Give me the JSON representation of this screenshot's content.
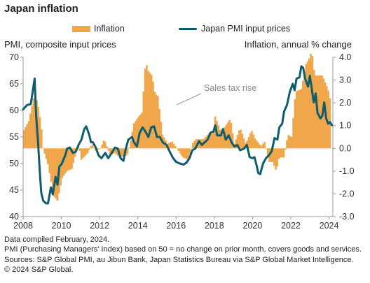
{
  "title": "Japan inflation",
  "legend": {
    "inflation_label": "Inflation",
    "pmi_label": "Japan PMI input prices"
  },
  "left_axis_title": "PMI, composite input prices",
  "right_axis_title": "Inflation, annual % change",
  "annotation": "Sales tax rise",
  "footer": {
    "line1": "Data compiled February, 2024.",
    "line2": "PMI (Purchasing Managers' Index) based on 50 = no change on prior month, covers goods and services.",
    "line3": "Sources: S&P Global PMI, au Jibun Bank, Japan Statistics Bureau via S&P Global Market Intelligence.",
    "line4": "© 2024 S&P Global."
  },
  "colors": {
    "inflation": "#f0a64a",
    "pmi": "#0d5d6e",
    "axis": "#9a9a9a"
  },
  "chart_data": {
    "type": "bar+line",
    "x_ticks": [
      "2008",
      "2010",
      "2012",
      "2014",
      "2016",
      "2018",
      "2020",
      "2022",
      "2024"
    ],
    "left_axis": {
      "label": "PMI, composite input prices",
      "min": 40,
      "max": 70,
      "ticks": [
        40,
        45,
        50,
        55,
        60,
        65,
        70
      ]
    },
    "right_axis": {
      "label": "Inflation, annual % change",
      "min": -3.0,
      "max": 4.0,
      "ticks": [
        "-3.0",
        "-2.0",
        "-1.0",
        "0.0",
        "1.0",
        "2.0",
        "3.0",
        "4.0"
      ]
    },
    "series": [
      {
        "name": "Inflation",
        "kind": "bar",
        "axis": "right",
        "points": [
          [
            2008.0,
            0.8
          ],
          [
            2008.25,
            1.2
          ],
          [
            2008.5,
            2.2
          ],
          [
            2008.7,
            2.1
          ],
          [
            2008.9,
            1.0
          ],
          [
            2009.0,
            0.0
          ],
          [
            2009.25,
            -0.7
          ],
          [
            2009.55,
            -2.1
          ],
          [
            2009.75,
            -2.3
          ],
          [
            2010.0,
            -1.3
          ],
          [
            2010.25,
            -1.0
          ],
          [
            2010.5,
            -0.9
          ],
          [
            2010.85,
            0.2
          ],
          [
            2011.0,
            -0.5
          ],
          [
            2011.35,
            -0.2
          ],
          [
            2011.55,
            0.2
          ],
          [
            2011.75,
            -0.1
          ],
          [
            2012.0,
            0.0
          ],
          [
            2012.2,
            0.4
          ],
          [
            2012.5,
            -0.3
          ],
          [
            2012.75,
            -0.2
          ],
          [
            2013.0,
            -0.4
          ],
          [
            2013.4,
            -0.3
          ],
          [
            2013.55,
            0.2
          ],
          [
            2013.75,
            1.1
          ],
          [
            2014.0,
            1.4
          ],
          [
            2014.1,
            1.5
          ],
          [
            2014.2,
            1.6
          ],
          [
            2014.3,
            3.4
          ],
          [
            2014.4,
            3.7
          ],
          [
            2014.5,
            3.4
          ],
          [
            2014.7,
            3.2
          ],
          [
            2014.85,
            2.4
          ],
          [
            2015.0,
            2.3
          ],
          [
            2015.25,
            0.6
          ],
          [
            2015.5,
            0.2
          ],
          [
            2015.75,
            0.3
          ],
          [
            2016.0,
            0.0
          ],
          [
            2016.3,
            -0.4
          ],
          [
            2016.6,
            -0.5
          ],
          [
            2016.8,
            0.2
          ],
          [
            2017.0,
            0.4
          ],
          [
            2017.4,
            0.4
          ],
          [
            2017.7,
            0.7
          ],
          [
            2017.9,
            0.6
          ],
          [
            2018.0,
            1.4
          ],
          [
            2018.3,
            0.7
          ],
          [
            2018.55,
            1.0
          ],
          [
            2018.8,
            1.3
          ],
          [
            2019.0,
            0.2
          ],
          [
            2019.3,
            0.9
          ],
          [
            2019.6,
            0.2
          ],
          [
            2019.9,
            0.8
          ],
          [
            2020.1,
            0.4
          ],
          [
            2020.4,
            0.1
          ],
          [
            2020.6,
            0.3
          ],
          [
            2020.8,
            -0.6
          ],
          [
            2021.0,
            -0.6
          ],
          [
            2021.2,
            -1.0
          ],
          [
            2021.35,
            -0.4
          ],
          [
            2021.6,
            -0.4
          ],
          [
            2021.8,
            0.6
          ],
          [
            2022.0,
            0.5
          ],
          [
            2022.2,
            2.5
          ],
          [
            2022.5,
            2.6
          ],
          [
            2022.75,
            3.7
          ],
          [
            2022.95,
            4.0
          ],
          [
            2023.05,
            4.3
          ],
          [
            2023.2,
            3.2
          ],
          [
            2023.4,
            3.2
          ],
          [
            2023.6,
            3.2
          ],
          [
            2023.8,
            2.8
          ],
          [
            2023.9,
            2.6
          ],
          [
            2024.0,
            2.2
          ]
        ]
      },
      {
        "name": "Japan PMI input prices",
        "kind": "line",
        "axis": "left",
        "points": [
          [
            2008.0,
            60.2
          ],
          [
            2008.2,
            61.0
          ],
          [
            2008.4,
            61.2
          ],
          [
            2008.5,
            63.5
          ],
          [
            2008.6,
            66.0
          ],
          [
            2008.68,
            59.0
          ],
          [
            2008.78,
            54.0
          ],
          [
            2008.88,
            48.0
          ],
          [
            2008.95,
            44.5
          ],
          [
            2009.05,
            43.0
          ],
          [
            2009.2,
            42.5
          ],
          [
            2009.3,
            42.5
          ],
          [
            2009.45,
            45.5
          ],
          [
            2009.55,
            44.2
          ],
          [
            2009.7,
            47.5
          ],
          [
            2009.8,
            46.0
          ],
          [
            2009.9,
            49.5
          ],
          [
            2010.0,
            49.8
          ],
          [
            2010.2,
            51.5
          ],
          [
            2010.3,
            52.8
          ],
          [
            2010.45,
            53.0
          ],
          [
            2010.6,
            52.0
          ],
          [
            2010.75,
            52.2
          ],
          [
            2010.9,
            53.5
          ],
          [
            2011.05,
            54.5
          ],
          [
            2011.2,
            56.5
          ],
          [
            2011.3,
            57.0
          ],
          [
            2011.45,
            55.5
          ],
          [
            2011.55,
            54.0
          ],
          [
            2011.65,
            54.0
          ],
          [
            2011.8,
            53.0
          ],
          [
            2011.95,
            51.5
          ],
          [
            2012.1,
            51.0
          ],
          [
            2012.3,
            52.0
          ],
          [
            2012.45,
            51.0
          ],
          [
            2012.6,
            51.8
          ],
          [
            2012.8,
            53.0
          ],
          [
            2012.95,
            52.8
          ],
          [
            2013.1,
            51.0
          ],
          [
            2013.25,
            50.5
          ],
          [
            2013.35,
            52.5
          ],
          [
            2013.5,
            54.5
          ],
          [
            2013.7,
            55.0
          ],
          [
            2013.8,
            54.0
          ],
          [
            2013.95,
            53.2
          ],
          [
            2014.1,
            55.8
          ],
          [
            2014.25,
            56.8
          ],
          [
            2014.4,
            56.0
          ],
          [
            2014.55,
            55.0
          ],
          [
            2014.7,
            56.8
          ],
          [
            2014.85,
            57.0
          ],
          [
            2015.0,
            55.0
          ],
          [
            2015.15,
            55.0
          ],
          [
            2015.3,
            54.0
          ],
          [
            2015.5,
            53.5
          ],
          [
            2015.7,
            52.0
          ],
          [
            2015.85,
            51.0
          ],
          [
            2016.0,
            50.3
          ],
          [
            2016.2,
            50.0
          ],
          [
            2016.4,
            49.8
          ],
          [
            2016.55,
            50.2
          ],
          [
            2016.7,
            51.0
          ],
          [
            2016.85,
            52.5
          ],
          [
            2017.0,
            52.8
          ],
          [
            2017.2,
            54.2
          ],
          [
            2017.35,
            53.5
          ],
          [
            2017.5,
            54.0
          ],
          [
            2017.65,
            54.5
          ],
          [
            2017.8,
            55.8
          ],
          [
            2017.95,
            56.0
          ],
          [
            2018.05,
            57.2
          ],
          [
            2018.15,
            55.3
          ],
          [
            2018.35,
            55.3
          ],
          [
            2018.45,
            56.5
          ],
          [
            2018.6,
            54.5
          ],
          [
            2018.75,
            55.3
          ],
          [
            2018.9,
            54.0
          ],
          [
            2019.05,
            53.2
          ],
          [
            2019.2,
            53.5
          ],
          [
            2019.35,
            52.5
          ],
          [
            2019.55,
            52.8
          ],
          [
            2019.7,
            53.5
          ],
          [
            2019.85,
            51.2
          ],
          [
            2020.0,
            51.0
          ],
          [
            2020.1,
            51.2
          ],
          [
            2020.2,
            49.8
          ],
          [
            2020.3,
            48.2
          ],
          [
            2020.4,
            48.0
          ],
          [
            2020.55,
            50.0
          ],
          [
            2020.7,
            51.0
          ],
          [
            2020.85,
            51.5
          ],
          [
            2021.0,
            52.3
          ],
          [
            2021.15,
            54.8
          ],
          [
            2021.3,
            54.5
          ],
          [
            2021.4,
            56.8
          ],
          [
            2021.55,
            57.5
          ],
          [
            2021.65,
            59.8
          ],
          [
            2021.8,
            61.0
          ],
          [
            2021.95,
            63.5
          ],
          [
            2022.1,
            65.0
          ],
          [
            2022.2,
            63.8
          ],
          [
            2022.3,
            66.0
          ],
          [
            2022.45,
            66.2
          ],
          [
            2022.55,
            68.3
          ],
          [
            2022.65,
            68.0
          ],
          [
            2022.75,
            66.0
          ],
          [
            2022.9,
            64.5
          ],
          [
            2023.0,
            66.5
          ],
          [
            2023.1,
            64.0
          ],
          [
            2023.2,
            61.5
          ],
          [
            2023.3,
            63.2
          ],
          [
            2023.4,
            59.5
          ],
          [
            2023.55,
            58.5
          ],
          [
            2023.65,
            59.0
          ],
          [
            2023.75,
            61.5
          ],
          [
            2023.85,
            58.5
          ],
          [
            2023.95,
            57.5
          ],
          [
            2024.05,
            57.8
          ],
          [
            2024.15,
            57.2
          ]
        ]
      }
    ]
  }
}
